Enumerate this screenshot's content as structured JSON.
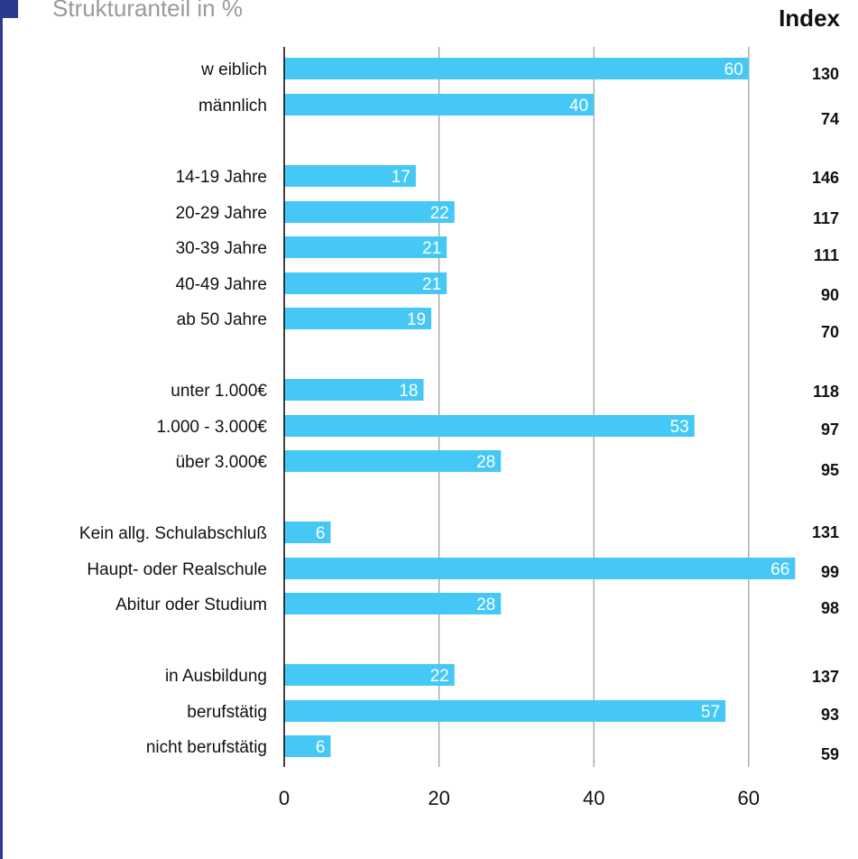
{
  "chart_data": {
    "type": "bar",
    "orientation": "horizontal",
    "title": "Strukturanteil in %",
    "index_header": "Index",
    "bar_color": "#45c8f5",
    "categories": [
      "w eiblich",
      "männlich",
      "14-19 Jahre",
      "20-29 Jahre",
      "30-39 Jahre",
      "40-49 Jahre",
      "ab 50 Jahre",
      "unter 1.000€",
      "1.000 - 3.000€",
      "über 3.000€",
      "Kein allg. Schulabschluß",
      "Haupt- oder Realschule",
      "Abitur oder Studium",
      "in Ausbildung",
      "berufstätig",
      "nicht berufstätig"
    ],
    "values": [
      60,
      40,
      17,
      22,
      21,
      21,
      19,
      18,
      53,
      28,
      6,
      66,
      28,
      22,
      57,
      6
    ],
    "index_values": [
      "130",
      "74",
      "146",
      "117",
      "111",
      "90",
      "70",
      "118",
      "97",
      "95",
      "131",
      "99",
      "98",
      "137",
      "93",
      "59"
    ],
    "xlim": [
      0,
      66
    ],
    "xticks": [
      "0",
      "20",
      "40",
      "60"
    ],
    "grid": true
  }
}
